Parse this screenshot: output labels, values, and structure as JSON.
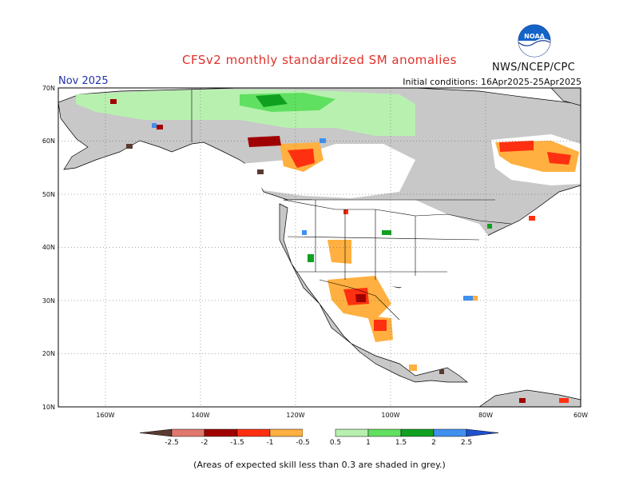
{
  "header": {
    "title": "CFSv2 monthly standardized SM anomalies",
    "agency": "NWS/NCEP/CPC",
    "logo_text": "NOAA",
    "target_month": "Nov 2025",
    "initial_conditions": "Initial conditions: 16Apr2025-25Apr2025"
  },
  "axes": {
    "lat_labels": [
      "70N",
      "60N",
      "50N",
      "40N",
      "30N",
      "20N",
      "10N"
    ],
    "lon_labels": [
      "160W",
      "140W",
      "120W",
      "100W",
      "80W",
      "60W"
    ]
  },
  "colorbar": {
    "labels": [
      "-2.5",
      "-2",
      "-1.5",
      "-1",
      "-0.5",
      "0.5",
      "1",
      "1.5",
      "2",
      "2.5"
    ],
    "colors": [
      "#5a3a32",
      "#e07870",
      "#a00000",
      "#ff3010",
      "#ffb040",
      "#ffffff",
      "#b8f0b0",
      "#60e060",
      "#10a020",
      "#4090f0",
      "#2050d0"
    ]
  },
  "colors": {
    "ocean": "#ffffff",
    "low_skill": "#c8c8c8",
    "neutral": "#ffffff",
    "coast": "#000000"
  },
  "footer": {
    "note": "(Areas of expected skill less than 0.3 are shaded in grey.)"
  }
}
